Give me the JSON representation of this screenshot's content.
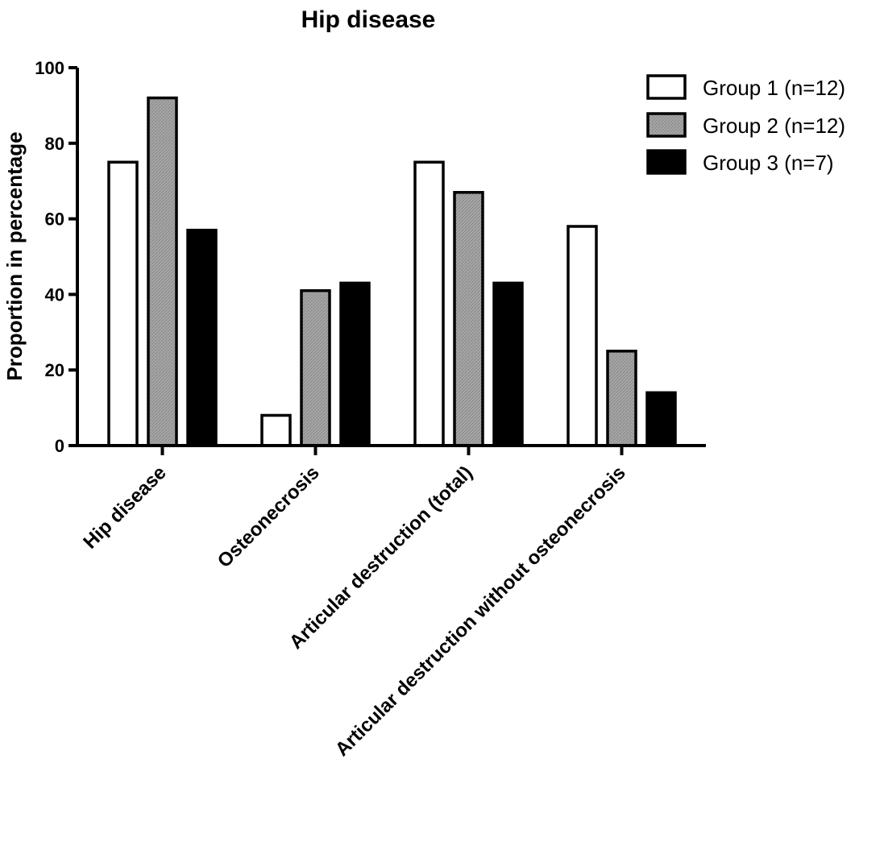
{
  "chart_data": {
    "type": "bar",
    "title": "Hip disease",
    "xlabel": "",
    "ylabel": "Proportion in percentage",
    "ylim": [
      0,
      100
    ],
    "yticks": [
      0,
      20,
      40,
      60,
      80,
      100
    ],
    "categories": [
      "Hip disease",
      "Osteonecrosis",
      "Articular destruction (total)",
      "Articular destruction without osteonecrosis"
    ],
    "series": [
      {
        "name": "Group 1 (n=12)",
        "values": [
          75,
          8,
          75,
          58
        ],
        "fill": "#ffffff"
      },
      {
        "name": "Group 2 (n=12)",
        "values": [
          92,
          41,
          67,
          25
        ],
        "fill": "#a6a6a6"
      },
      {
        "name": "Group 3 (n=7)",
        "values": [
          57,
          43,
          43,
          14
        ],
        "fill": "#000000"
      }
    ],
    "legend_position": "top-right",
    "grid": false
  }
}
